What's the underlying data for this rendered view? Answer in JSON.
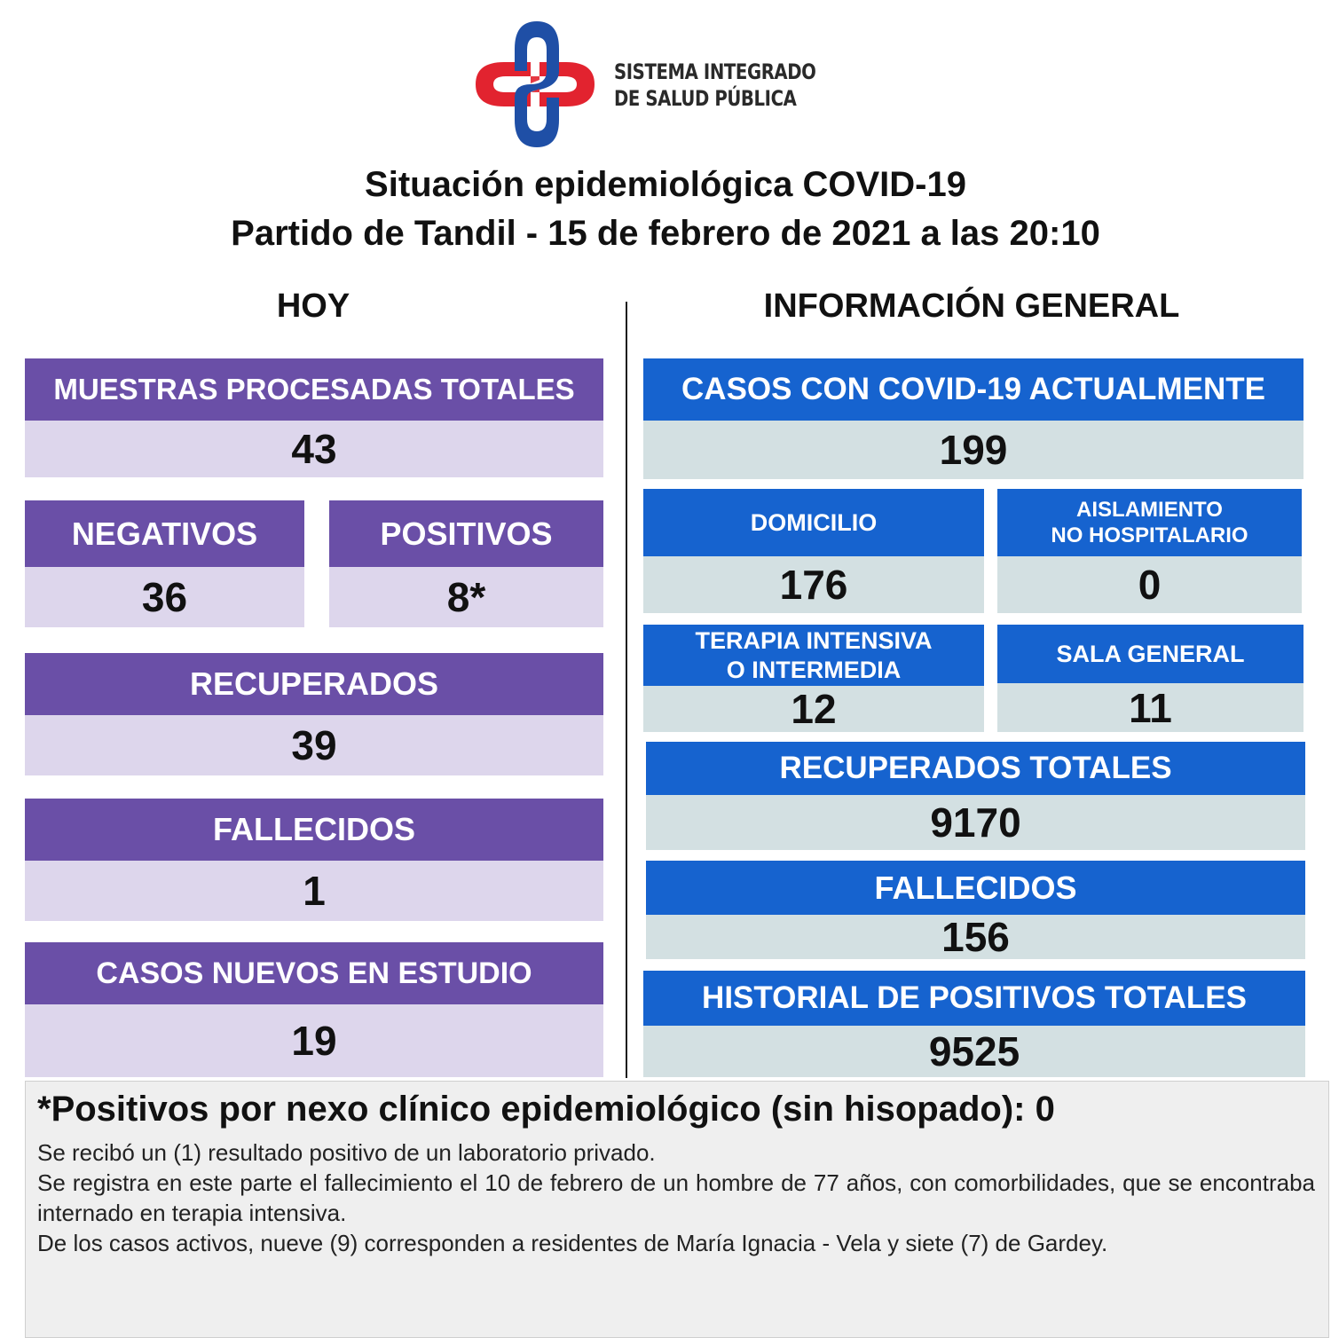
{
  "brand": {
    "line1": "SISTEMA INTEGRADO",
    "line2": "DE SALUD PÚBLICA",
    "colors": {
      "red": "#e2232f",
      "blue": "#1f4fa6"
    }
  },
  "title": {
    "line1": "Situación epidemiológica COVID-19",
    "line2": "Partido de Tandil - 15 de febrero de 2021 a las 20:10"
  },
  "hoy": {
    "heading": "HOY",
    "muestras": {
      "label": "MUESTRAS PROCESADAS TOTALES",
      "value": "43"
    },
    "negativos": {
      "label": "NEGATIVOS",
      "value": "36"
    },
    "positivos": {
      "label": "POSITIVOS",
      "value": "8*"
    },
    "recuperados": {
      "label": "RECUPERADOS",
      "value": "39"
    },
    "fallecidos": {
      "label": "FALLECIDOS",
      "value": "1"
    },
    "nuevos": {
      "label": "CASOS NUEVOS EN ESTUDIO",
      "value": "19"
    }
  },
  "general": {
    "heading": "INFORMACIÓN GENERAL",
    "actuales": {
      "label": "CASOS CON COVID-19 ACTUALMENTE",
      "value": "199"
    },
    "domicilio": {
      "label": "DOMICILIO",
      "value": "176"
    },
    "aislamiento": {
      "label_line1": "AISLAMIENTO",
      "label_line2": "NO HOSPITALARIO",
      "value": "0"
    },
    "terapia": {
      "label_line1": "TERAPIA INTENSIVA",
      "label_line2": "O INTERMEDIA",
      "value": "12"
    },
    "sala": {
      "label": "SALA GENERAL",
      "value": "11"
    },
    "recuperados": {
      "label": "RECUPERADOS TOTALES",
      "value": "9170"
    },
    "fallecidos": {
      "label": "FALLECIDOS",
      "value": "156"
    },
    "historial": {
      "label": "HISTORIAL DE POSITIVOS TOTALES",
      "value": "9525"
    }
  },
  "colors": {
    "purple_header": "#6a4fa7",
    "lavender_value": "#ddd6ec",
    "blue_header": "#1663cf",
    "gray_value": "#d3e0e2"
  },
  "footnote": {
    "title": "*Positivos por nexo clínico epidemiológico (sin hisopado): 0",
    "line1": "Se recibó un (1) resultado positivo de un laboratorio privado.",
    "line2": "Se registra en este parte el fallecimiento el 10 de febrero de un hombre de 77 años, con comorbilidades, que se encontraba internado en terapia intensiva.",
    "line3": "De los casos activos, nueve (9) corresponden a residentes de María Ignacia - Vela y siete (7) de Gardey."
  }
}
